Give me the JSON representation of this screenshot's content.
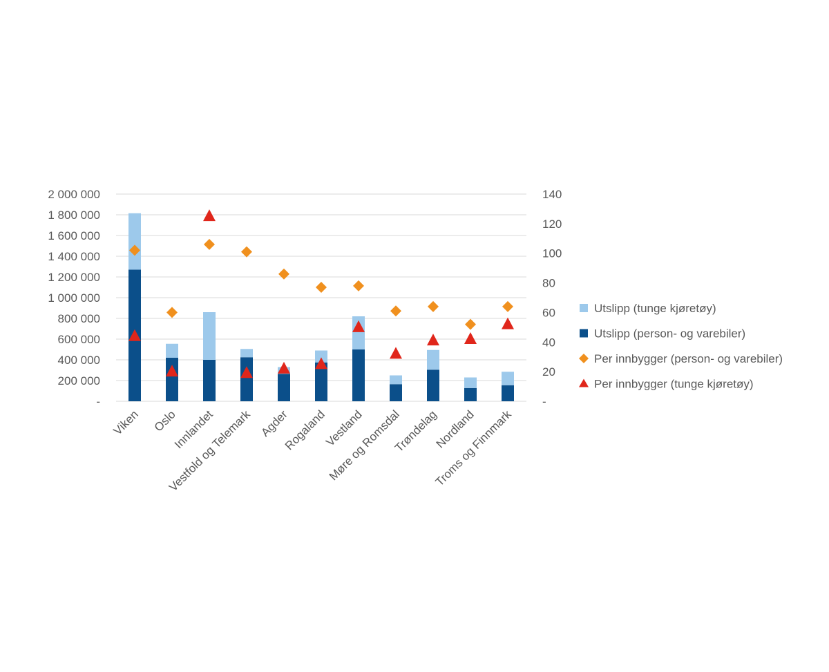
{
  "chart_data": {
    "type": "bar",
    "stacked": true,
    "categories": [
      "Viken",
      "Oslo",
      "Innlandet",
      "Vestfold og Telemark",
      "Agder",
      "Rogaland",
      "Vestland",
      "Møre og Romsdal",
      "Trøndelag",
      "Nordland",
      "Troms og Finnmark"
    ],
    "series": [
      {
        "name": "Utslipp (person- og varebiler)",
        "type": "bar",
        "axis": "left",
        "color": "#0b4f8a",
        "values": [
          1270000,
          420000,
          400000,
          425000,
          265000,
          375000,
          500000,
          165000,
          305000,
          128000,
          155000
        ]
      },
      {
        "name": "Utslipp (tunge kjøretøy)",
        "type": "bar",
        "axis": "left",
        "color": "#9dc9eb",
        "values": [
          545000,
          135000,
          460000,
          80000,
          65000,
          115000,
          320000,
          85000,
          190000,
          102000,
          130000
        ]
      },
      {
        "name": "Per innbygger (person- og varebiler)",
        "type": "scatter",
        "marker": "diamond",
        "axis": "right",
        "color": "#f0901e",
        "values": [
          102,
          60,
          106,
          101,
          86,
          77,
          78,
          61,
          64,
          52,
          64
        ]
      },
      {
        "name": "Per innbygger (tunge kjøretøy)",
        "type": "scatter",
        "marker": "triangle",
        "axis": "right",
        "color": "#e0261b",
        "values": [
          44,
          20,
          125,
          19,
          22,
          25,
          50,
          32,
          41,
          42,
          52
        ]
      }
    ],
    "left_axis": {
      "min": 0,
      "max": 2000000,
      "ticks": [
        "-",
        "200 000",
        "400 000",
        "600 000",
        "800 000",
        "1 000 000",
        "1 200 000",
        "1 400 000",
        "1 600 000",
        "1 800 000",
        "2 000 000"
      ]
    },
    "right_axis": {
      "min": 0,
      "max": 140,
      "ticks": [
        "-",
        "20",
        "40",
        "60",
        "80",
        "100",
        "120",
        "140"
      ]
    },
    "legend": {
      "placement": "right",
      "items": [
        {
          "label": "Utslipp (tunge kjøretøy)",
          "marker": "square",
          "color": "#9dc9eb"
        },
        {
          "label": "Utslipp (person- og varebiler)",
          "marker": "square",
          "color": "#0b4f8a"
        },
        {
          "label": "Per innbygger (person- og varebiler)",
          "marker": "diamond",
          "color": "#f0901e"
        },
        {
          "label": "Per innbygger (tunge kjøretøy)",
          "marker": "triangle",
          "color": "#e0261b"
        }
      ]
    },
    "grid": true
  }
}
